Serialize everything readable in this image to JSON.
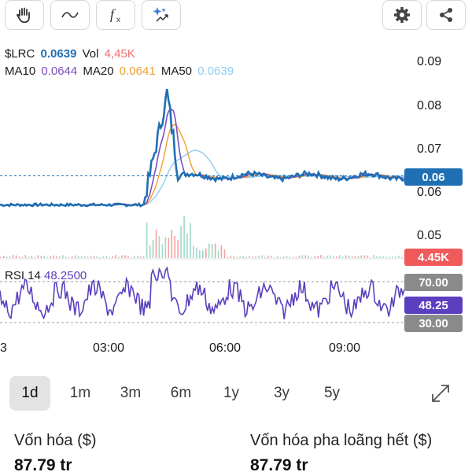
{
  "toolbar": {
    "left_tools": [
      {
        "icon": "hand-icon"
      },
      {
        "icon": "wave-line-icon"
      },
      {
        "icon": "function-icon"
      },
      {
        "icon": "ai-sparkle-icon"
      }
    ],
    "right_tools": [
      {
        "icon": "gear-icon"
      },
      {
        "icon": "share-icon"
      }
    ]
  },
  "legend": {
    "symbol": "$LRC",
    "price": "0.0639",
    "vol_label": "Vol",
    "vol_value": "4,45K",
    "ma10_label": "MA10",
    "ma10_value": "0.0644",
    "ma20_label": "MA20",
    "ma20_value": "0.0641",
    "ma50_label": "MA50",
    "ma50_value": "0.0639",
    "rsi_label": "RSI 14",
    "rsi_value": "48.2500"
  },
  "axis": {
    "price_ticks": [
      "0.09",
      "0.08",
      "0.07",
      "0.06",
      "0.05"
    ],
    "time_ticks": [
      "3",
      "03:00",
      "06:00",
      "09:00"
    ]
  },
  "badges": {
    "price": "0.06",
    "volume": "4.45K",
    "rsi_upper": "70.00",
    "rsi_current": "48.25",
    "rsi_lower": "30.00"
  },
  "colors": {
    "price": "#1f6fb5",
    "ma10": "#7b4fbf",
    "ma20": "#f0a030",
    "ma50": "#8fcdf0",
    "volume": "#f07070",
    "rsi": "#5b3fbf",
    "badge_grey": "#8a8a8a"
  },
  "ranges": [
    {
      "label": "1d",
      "active": true
    },
    {
      "label": "1m",
      "active": false
    },
    {
      "label": "3m",
      "active": false
    },
    {
      "label": "6m",
      "active": false
    },
    {
      "label": "1y",
      "active": false
    },
    {
      "label": "3y",
      "active": false
    },
    {
      "label": "5y",
      "active": false
    }
  ],
  "stats": {
    "market_cap_label": "Vốn hóa ($)",
    "market_cap_value": "87.79 tr",
    "fdv_label": "Vốn hóa pha loãng hết ($)",
    "fdv_value": "87.79 tr"
  }
}
